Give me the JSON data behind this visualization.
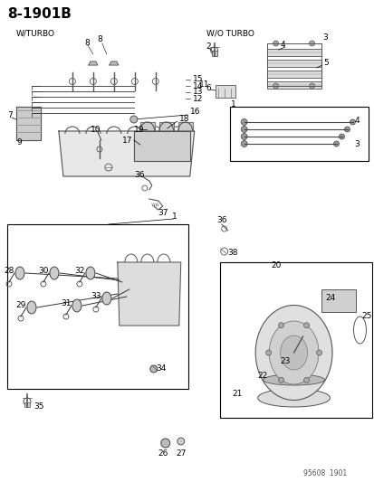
{
  "title": "8-1901B",
  "footer": "95608  1901",
  "bg_color": "#ffffff",
  "title_fontsize": 11,
  "label_fontsize": 6.5,
  "w_turbo_label": "W/TURBO",
  "wo_turbo_label": "W/O TURBO"
}
